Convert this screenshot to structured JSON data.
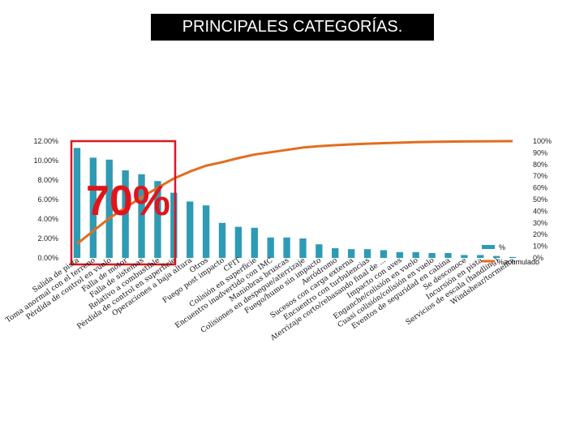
{
  "title": "PRINCIPALES CATEGORÍAS.",
  "annotation": "70%",
  "colors": {
    "bar": "#2E9BB5",
    "line": "#E46C1E",
    "box": "#E0151B"
  },
  "chart_data": {
    "type": "bar",
    "categories": [
      "Salida de pista",
      "Toma anormal con el terreno",
      "Pérdida de control en vuelo",
      "Falla de motor",
      "Falla de sistemas",
      "Relativo a combustible",
      "Pérdida de control en superficie",
      "Operaciones a baja altura",
      "Otros",
      "Fuego post impacto",
      "CFIT",
      "Colisión en superficie",
      "Encuentro inadvertido con IMC",
      "Maniobras bruscas",
      "Colisiones en despegue/aterrizaje",
      "Fuego/humo sin impacto",
      "Aeródromo",
      "Sucesos con carga externa",
      "Encuentro con turbulencias",
      "Aterrizaje corto/rebasando final de ...",
      "Impacto con aves",
      "Enganche/colisión en vuelo",
      "Cuasi colisión/colisión en vuelo",
      "Eventos de seguridad en cabina",
      "Se desconoce",
      "Incursión en pista",
      "Servicios de escala (handling)",
      "Windshear/tormenta"
    ],
    "series": [
      {
        "name": "%",
        "axis": "left",
        "values": [
          11.3,
          10.3,
          10.1,
          9.0,
          8.6,
          7.9,
          6.7,
          5.8,
          5.4,
          3.6,
          3.2,
          3.1,
          2.1,
          2.1,
          2.0,
          1.4,
          1.0,
          0.9,
          0.9,
          0.8,
          0.6,
          0.6,
          0.5,
          0.5,
          0.3,
          0.3,
          0.2,
          0.1
        ]
      },
      {
        "name": "%acumulado",
        "type": "line",
        "axis": "right",
        "values": [
          12,
          23,
          34,
          43,
          52,
          60,
          68,
          74,
          79,
          82,
          85.5,
          88.5,
          90.5,
          92.5,
          94.5,
          95.7,
          96.5,
          97.2,
          97.8,
          98.3,
          98.7,
          99.1,
          99.4,
          99.6,
          99.7,
          99.8,
          99.9,
          100
        ]
      }
    ],
    "y_left": {
      "ticks": [
        "0.00%",
        "2.00%",
        "4.00%",
        "6.00%",
        "8.00%",
        "10.00%",
        "12.00%"
      ],
      "ylim": [
        0,
        12
      ]
    },
    "y_right": {
      "ticks": [
        "0%",
        "10%",
        "20%",
        "30%",
        "40%",
        "50%",
        "60%",
        "70%",
        "80%",
        "90%",
        "100%"
      ],
      "ylim": [
        0,
        100
      ]
    },
    "legend_position": "right",
    "grid": false
  }
}
